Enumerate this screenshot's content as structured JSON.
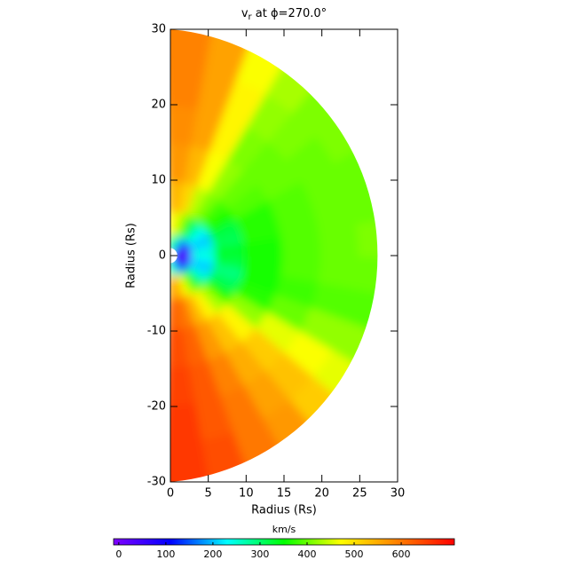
{
  "chart_data": {
    "type": "polar-map",
    "title": {
      "base": "v",
      "subscript": "r",
      "rest": " at ϕ=270.0°"
    },
    "x_label": "Radius (Rs)",
    "y_label": "Radius (Rs)",
    "xlim": [
      0,
      30
    ],
    "ylim": [
      -30,
      30
    ],
    "xticks": [
      0,
      5,
      10,
      15,
      20,
      25,
      30
    ],
    "yticks": [
      -30,
      -20,
      -10,
      0,
      10,
      20,
      30
    ],
    "r_edges": [
      1,
      3,
      6,
      10,
      15,
      20,
      25,
      30
    ],
    "lat_edges": [
      -90,
      -80,
      -70,
      -60,
      -50,
      -40,
      -30,
      -20,
      -10,
      0,
      10,
      20,
      30,
      40,
      50,
      60,
      70,
      80,
      90
    ],
    "values": [
      [
        300,
        260,
        220,
        180,
        130,
        90,
        60,
        40,
        30,
        30,
        40,
        60,
        90,
        140,
        190,
        240,
        280,
        320
      ],
      [
        560,
        540,
        470,
        400,
        330,
        260,
        220,
        200,
        230,
        250,
        220,
        200,
        230,
        260,
        320,
        380,
        440,
        480
      ],
      [
        620,
        600,
        540,
        480,
        430,
        360,
        310,
        290,
        320,
        330,
        310,
        320,
        360,
        380,
        410,
        440,
        510,
        540
      ],
      [
        640,
        620,
        570,
        530,
        480,
        420,
        370,
        360,
        360,
        360,
        370,
        370,
        390,
        400,
        420,
        470,
        540,
        570
      ],
      [
        650,
        630,
        590,
        550,
        520,
        460,
        400,
        380,
        390,
        390,
        390,
        390,
        400,
        400,
        410,
        480,
        560,
        580
      ],
      [
        660,
        630,
        600,
        560,
        530,
        470,
        420,
        390,
        400,
        400,
        400,
        400,
        400,
        410,
        420,
        480,
        560,
        590
      ],
      [
        660,
        640,
        600,
        570,
        520,
        460,
        420,
        390,
        400,
        410,
        400,
        400,
        410,
        410,
        430,
        470,
        560,
        590
      ]
    ],
    "colorbar_label": "km/s",
    "clim": [
      -11,
      713
    ],
    "cticks": [
      0,
      100,
      200,
      300,
      400,
      500,
      600
    ],
    "colormap": [
      "#8000ff",
      "#0000ff",
      "#00ffff",
      "#00ff00",
      "#ffff00",
      "#ff8000",
      "#ff0000"
    ]
  }
}
